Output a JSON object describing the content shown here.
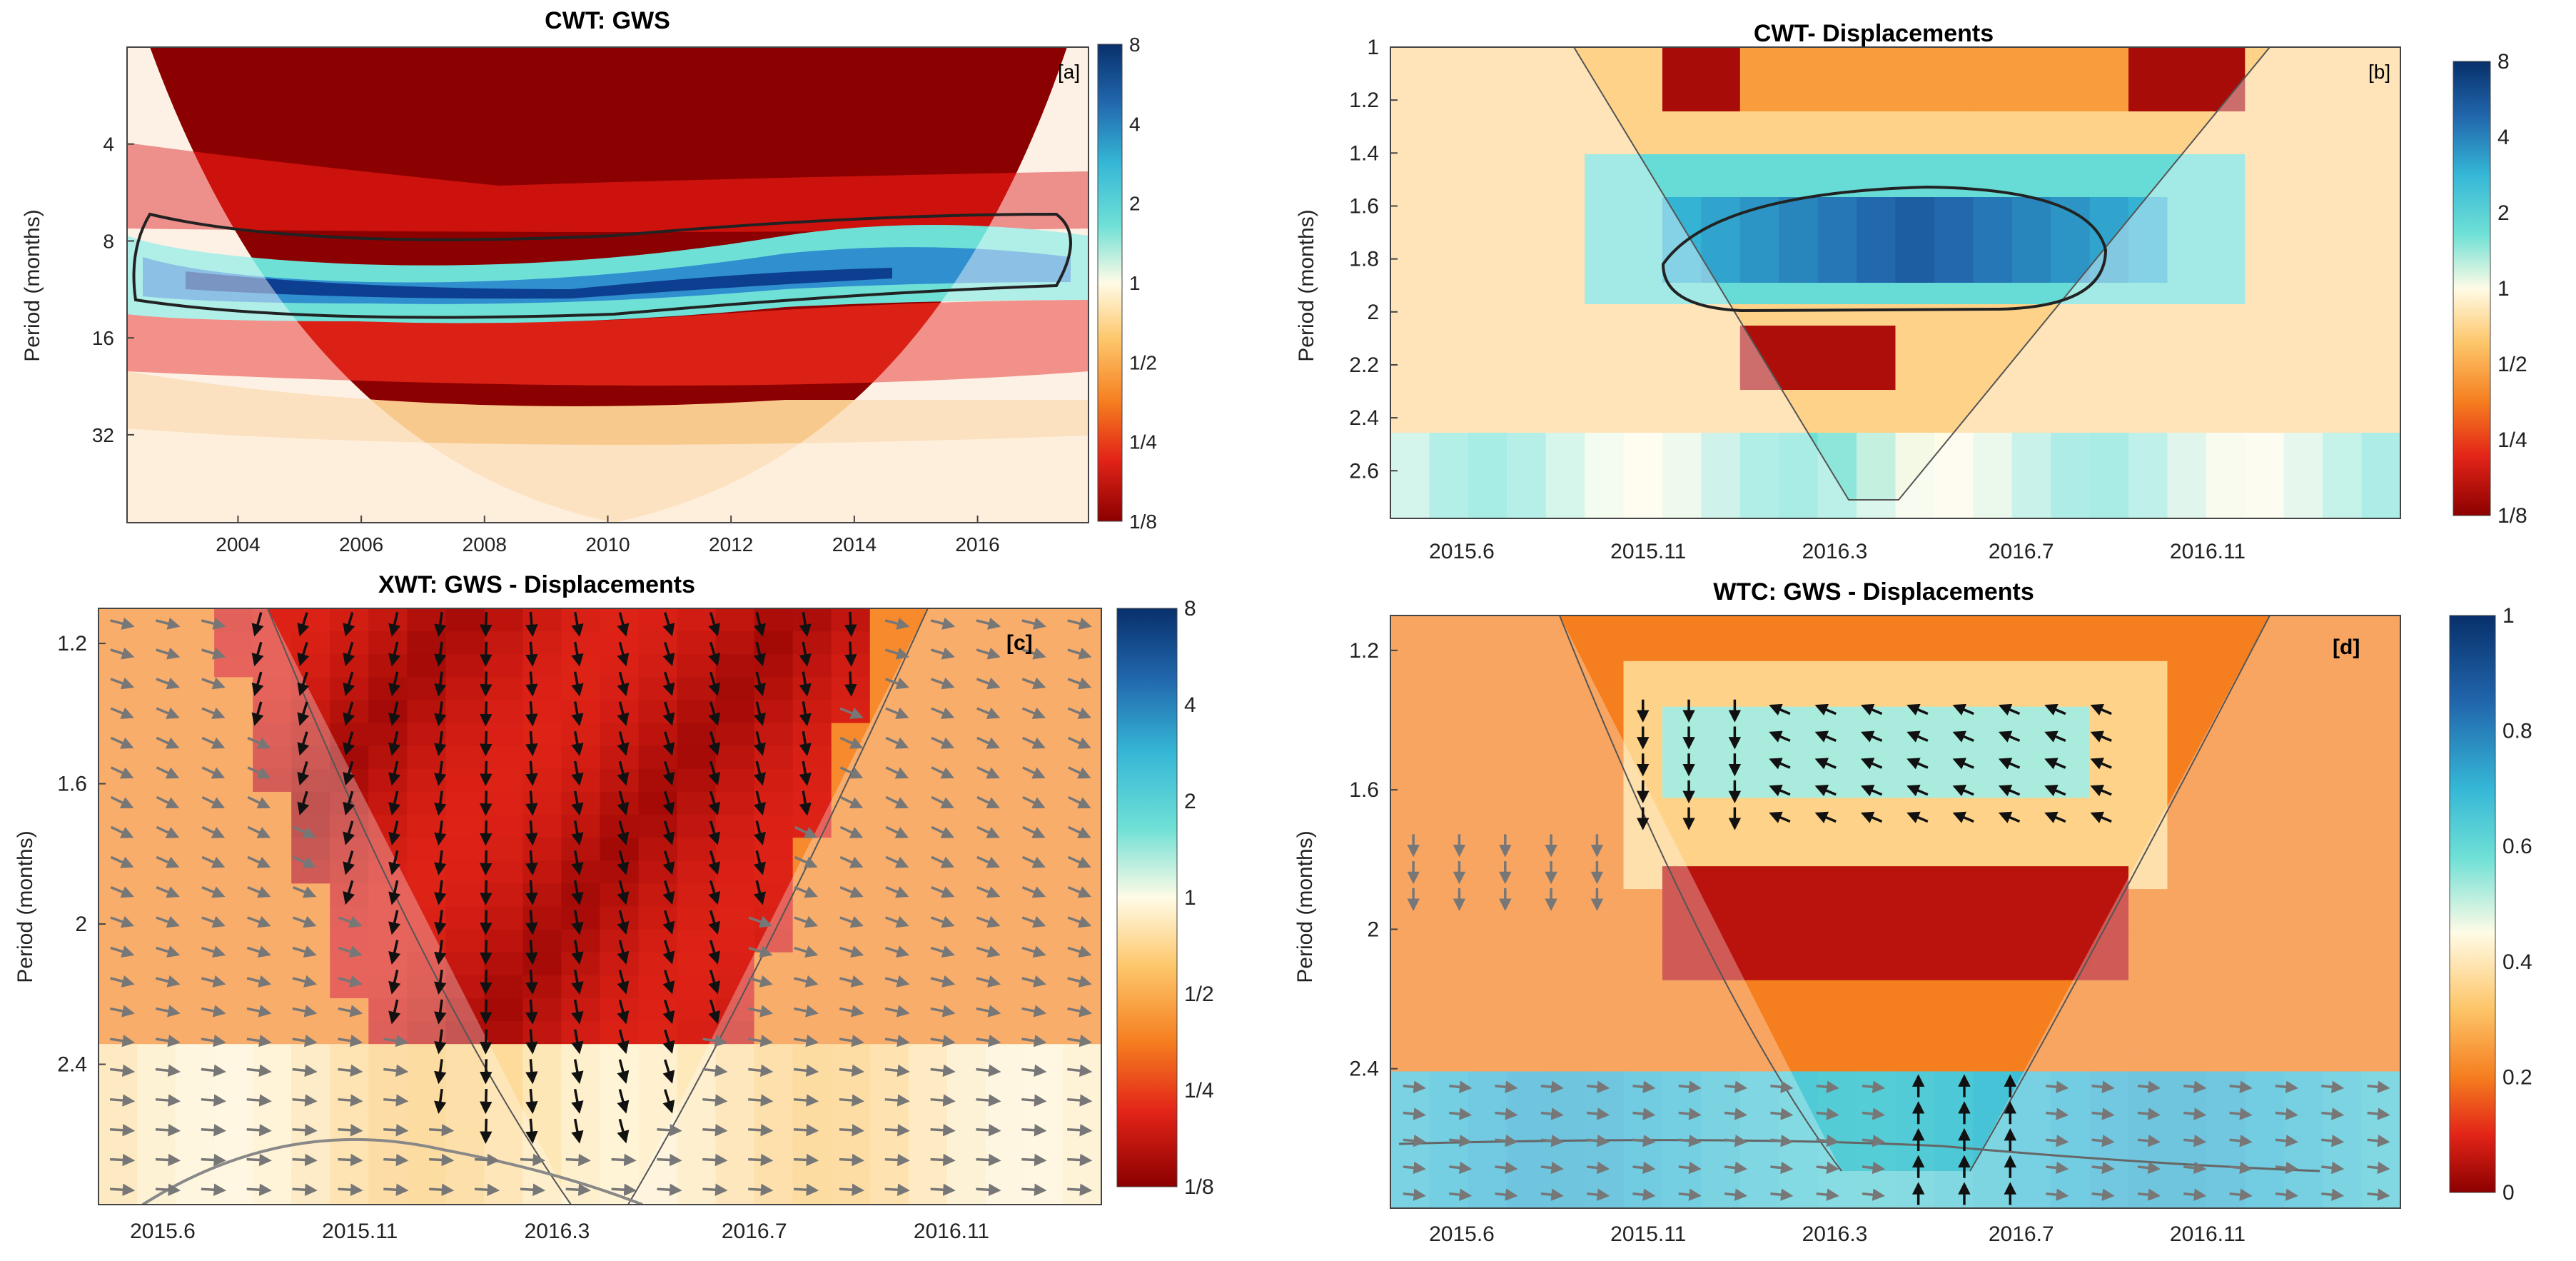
{
  "chart_data": [
    {
      "panel": "a",
      "type": "heatmap",
      "title": "CWT:  GWS",
      "tag": "[a]",
      "ylabel": "Period (months)",
      "xlabel": "",
      "x_ticks": [
        "2004",
        "2006",
        "2008",
        "2010",
        "2012",
        "2014",
        "2016"
      ],
      "x_tick_values": [
        2004,
        2006,
        2008,
        2010,
        2012,
        2014,
        2016
      ],
      "xlim": [
        2002.2,
        2017.8
      ],
      "y_ticks": [
        "4",
        "8",
        "16",
        "32"
      ],
      "y_tick_values": [
        4,
        8,
        16,
        32
      ],
      "y_scale": "log2",
      "ylim": [
        2,
        60
      ],
      "colorbar": {
        "ticks": [
          "8",
          "4",
          "2",
          "1",
          "1/2",
          "1/4",
          "1/8"
        ],
        "range_note": "power, log2 scale"
      },
      "features": {
        "cone_of_influence": true,
        "significance_contour": "band around period 8-16 months across 2002-2017",
        "dominant_band_period_months": 12,
        "dominant_band_power": 8
      }
    },
    {
      "panel": "b",
      "type": "heatmap",
      "title": "CWT-  Displacements",
      "tag": "[b]",
      "ylabel": "Period (months)",
      "xlabel": "",
      "x_ticks": [
        "2015.6",
        "2015.11",
        "2016.3",
        "2016.7",
        "2016.11"
      ],
      "y_ticks": [
        "1",
        "1.2",
        "1.4",
        "1.6",
        "1.8",
        "2",
        "2.2",
        "2.4",
        "2.6"
      ],
      "y_tick_values": [
        1,
        1.2,
        1.4,
        1.6,
        1.8,
        2,
        2.2,
        2.4,
        2.6
      ],
      "ylim": [
        1,
        2.78
      ],
      "colorbar": {
        "ticks": [
          "8",
          "4",
          "2",
          "1",
          "1/2",
          "1/4",
          "1/8"
        ]
      },
      "features": {
        "cone_of_influence": true,
        "significance_contour": "ellipse around period 1.55-2.0 months, 2015.11-2016.8",
        "dominant_band_period_months": 1.8,
        "dominant_band_power": 8
      }
    },
    {
      "panel": "c",
      "type": "heatmap",
      "title": "XWT:  GWS - Displacements",
      "tag": "[c]",
      "ylabel": "Period (months)",
      "xlabel": "",
      "x_ticks": [
        "2015.6",
        "2015.11",
        "2016.3",
        "2016.7",
        "2016.11"
      ],
      "y_ticks": [
        "1.2",
        "1.6",
        "2",
        "2.4"
      ],
      "y_tick_values": [
        1.2,
        1.6,
        2,
        2.4
      ],
      "ylim": [
        1.1,
        2.8
      ],
      "colorbar": {
        "ticks": [
          "8",
          "4",
          "2",
          "1",
          "1/2",
          "1/4",
          "1/8"
        ]
      },
      "features": {
        "cone_of_influence": true,
        "phase_arrows": true,
        "high_power_region": "periods 1.1-2.5 months inside cone, red"
      }
    },
    {
      "panel": "d",
      "type": "heatmap",
      "title": "WTC: GWS - Displacements",
      "tag": "[d]",
      "ylabel": "Period (months)",
      "xlabel": "",
      "x_ticks": [
        "2015.6",
        "2015.11",
        "2016.3",
        "2016.7",
        "2016.11"
      ],
      "y_ticks": [
        "1.2",
        "1.6",
        "2",
        "2.4"
      ],
      "y_tick_values": [
        1.2,
        1.6,
        2,
        2.4
      ],
      "ylim": [
        1.1,
        2.8
      ],
      "colorbar": {
        "ticks": [
          "1",
          "0.8",
          "0.6",
          "0.4",
          "0.2",
          "0"
        ],
        "tick_values": [
          1,
          0.8,
          0.6,
          0.4,
          0.2,
          0
        ]
      },
      "features": {
        "cone_of_influence": true,
        "phase_arrows": true,
        "high_coherence_region": "period ~2.5-2.8 months across full span, coherence ~0.7",
        "mid_coherence_region": "period 1.4-1.6 months, 2015.11-2016.7, coherence ~0.6"
      }
    }
  ]
}
